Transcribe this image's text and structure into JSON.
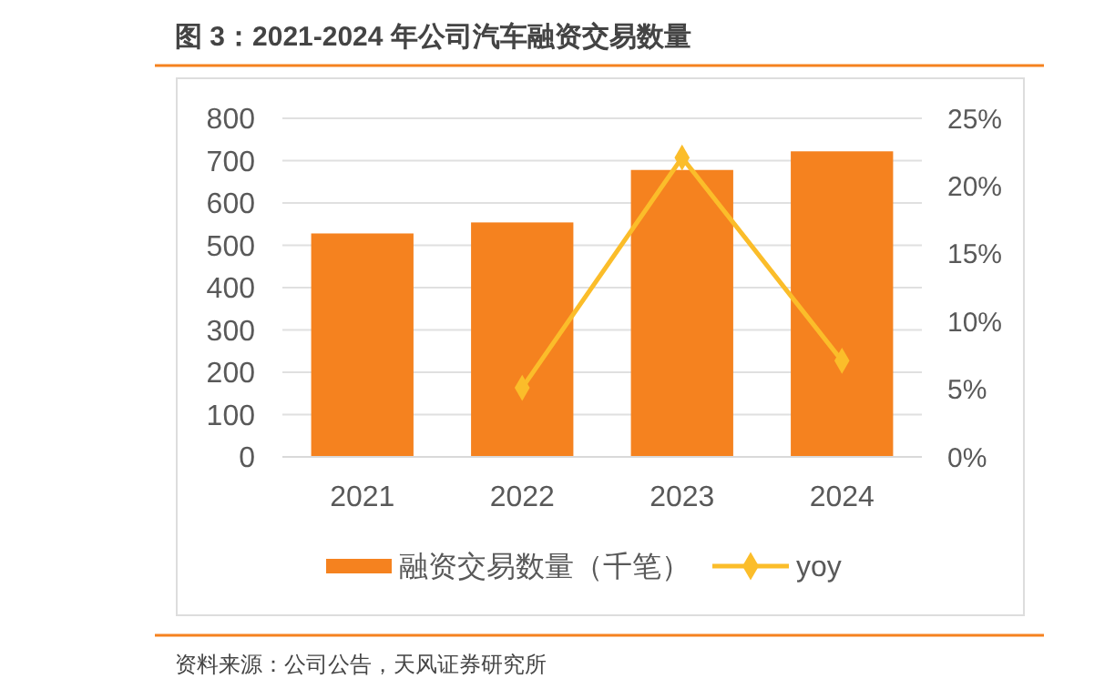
{
  "chart_data": {
    "type": "bar",
    "title": "图 3：2021-2024 年公司汽车融资交易数量",
    "categories": [
      "2021",
      "2022",
      "2023",
      "2024"
    ],
    "series": [
      {
        "name": "融资交易数量（千笔）",
        "color": "#f5821f",
        "values": [
          528,
          554,
          678,
          722
        ]
      },
      {
        "name": "yoy",
        "type": "line",
        "axis": "y2",
        "color": "#fbbd2a",
        "marker": "diamond",
        "values": [
          null,
          5.1,
          22.1,
          7.1
        ]
      }
    ],
    "ylim": [
      0,
      800
    ],
    "yticks": [
      0,
      100,
      200,
      300,
      400,
      500,
      600,
      700,
      800
    ],
    "y2lim": [
      0,
      25
    ],
    "y2ticks": [
      {
        "value": 0,
        "label": "0%"
      },
      {
        "value": 5,
        "label": "5%"
      },
      {
        "value": 10,
        "label": "10%"
      },
      {
        "value": 15,
        "label": "15%"
      },
      {
        "value": 20,
        "label": "20%"
      },
      {
        "value": 25,
        "label": "25%"
      }
    ],
    "grid": "y",
    "legend": "bottom",
    "annotations": [
      "资料来源：公司公告，天风证券研究所"
    ]
  }
}
